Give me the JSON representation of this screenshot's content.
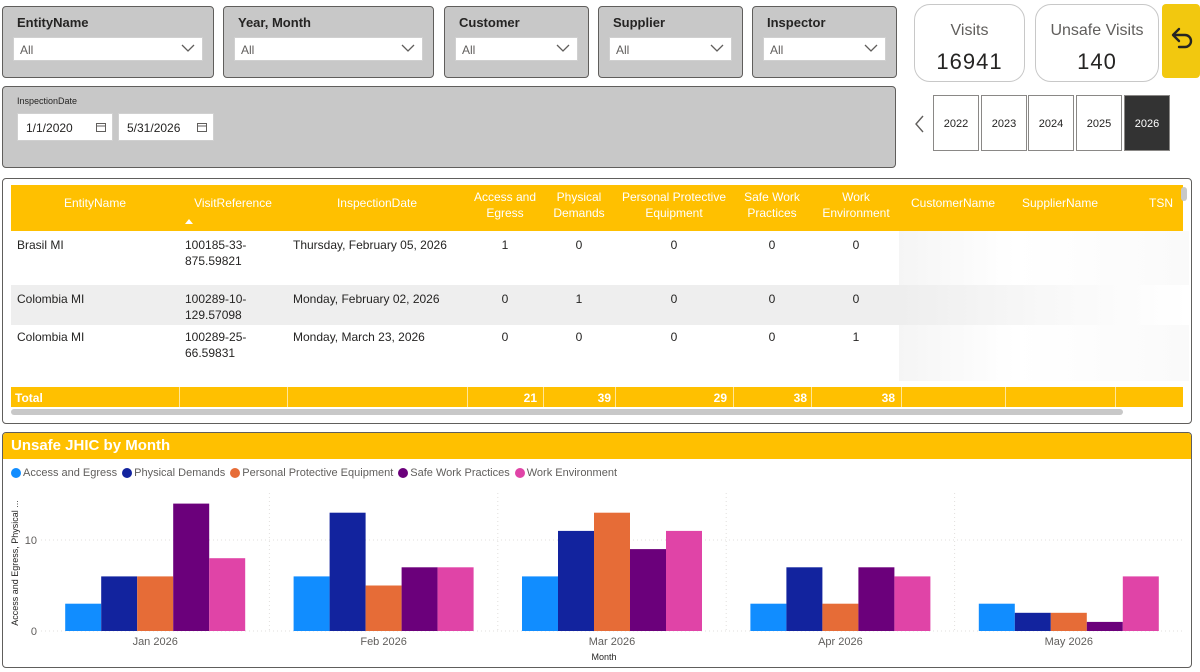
{
  "slicers": [
    {
      "title": "EntityName",
      "value": "All"
    },
    {
      "title": "Year, Month",
      "value": "All"
    },
    {
      "title": "Customer",
      "value": "All"
    },
    {
      "title": "Supplier",
      "value": "All"
    },
    {
      "title": "Inspector",
      "value": "All"
    }
  ],
  "inspection_date": {
    "title": "InspectionDate",
    "start": "1/1/2020",
    "end": "5/31/2026"
  },
  "kpis": {
    "visits_label": "Visits",
    "visits_value": "16941",
    "unsafe_label": "Unsafe Visits",
    "unsafe_value": "140"
  },
  "years": [
    "2022",
    "2023",
    "2024",
    "2025",
    "2026"
  ],
  "selected_year": "2026",
  "table": {
    "columns": [
      "EntityName",
      "VisitReference",
      "InspectionDate",
      "Access and Egress",
      "Physical Demands",
      "Personal Protective Equipment",
      "Safe Work Practices",
      "Work Environment",
      "CustomerName",
      "SupplierName",
      "TSN"
    ],
    "rows": [
      {
        "entity": "Brasil MI",
        "ref": "100185-33-875.59821",
        "date": "Thursday, February 05, 2026",
        "v1": "1",
        "v2": "0",
        "v3": "0",
        "v4": "0",
        "v5": "0"
      },
      {
        "entity": "Colombia MI",
        "ref": "100289-10-129.57098",
        "date": "Monday, February 02, 2026",
        "v1": "0",
        "v2": "1",
        "v3": "0",
        "v4": "0",
        "v5": "0"
      },
      {
        "entity": "Colombia MI",
        "ref": "100289-25-66.59831",
        "date": "Monday, March 23, 2026",
        "v1": "0",
        "v2": "0",
        "v3": "0",
        "v4": "0",
        "v5": "1"
      }
    ],
    "total": {
      "label": "Total",
      "v1": "21",
      "v2": "39",
      "v3": "29",
      "v4": "38",
      "v5": "38"
    }
  },
  "chart": {
    "title": "Unsafe JHIC by Month",
    "colors": [
      "#118dff",
      "#12239e",
      "#e66c37",
      "#6b007b",
      "#e044a7"
    ]
  },
  "chart_data": {
    "type": "bar",
    "title": "Unsafe JHIC by Month",
    "xlabel": "Month",
    "ylabel": "Access and Egress, Physical ...",
    "categories": [
      "Jan 2026",
      "Feb 2026",
      "Mar 2026",
      "Apr 2026",
      "May 2026"
    ],
    "series": [
      {
        "name": "Access and Egress",
        "values": [
          3,
          6,
          6,
          3,
          3
        ]
      },
      {
        "name": "Physical Demands",
        "values": [
          6,
          13,
          11,
          7,
          2
        ]
      },
      {
        "name": "Personal Protective Equipment",
        "values": [
          6,
          5,
          13,
          3,
          2
        ]
      },
      {
        "name": "Safe Work Practices",
        "values": [
          14,
          7,
          9,
          7,
          1
        ]
      },
      {
        "name": "Work Environment",
        "values": [
          8,
          7,
          11,
          6,
          6
        ]
      }
    ],
    "yticks": [
      0,
      10
    ],
    "ylim": [
      0,
      15
    ],
    "legend": "top-left",
    "grid": true
  }
}
